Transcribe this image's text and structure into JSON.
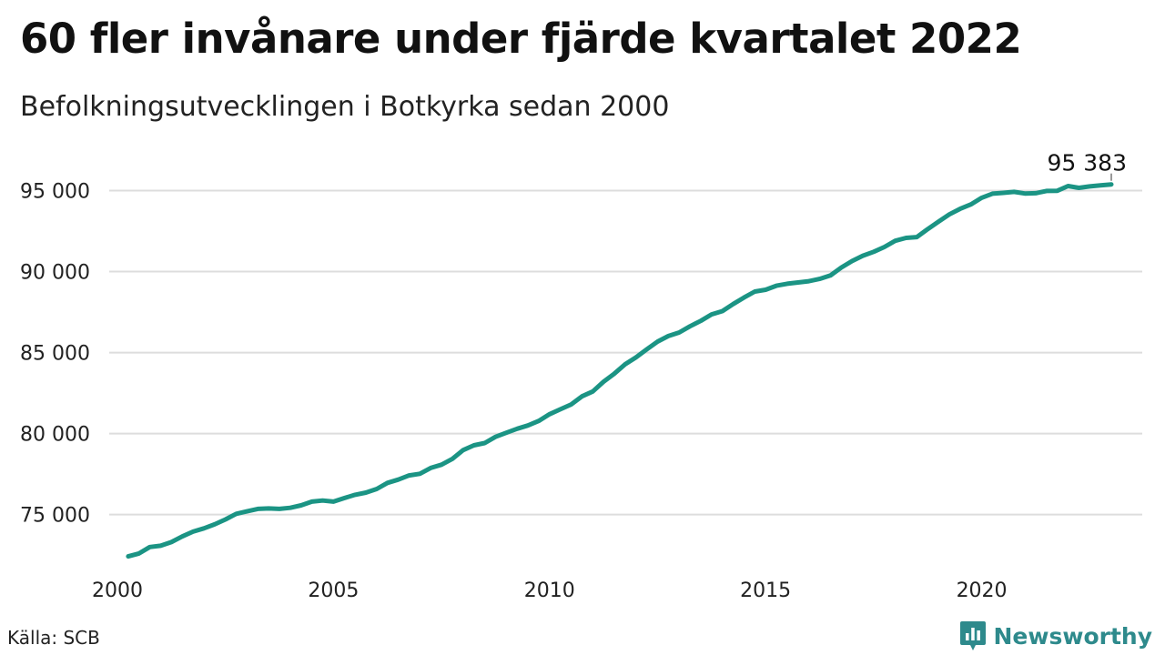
{
  "header": {
    "title": "60 fler invånare under fjärde kvartalet 2022",
    "subtitle": "Befolkningsutvecklingen i Botkyrka sedan 2000"
  },
  "footer": {
    "source": "Källa: SCB",
    "brand": "Newsworthy",
    "brand_icon": "newsworthy-logo-icon"
  },
  "colors": {
    "line": "#1b9484",
    "grid": "#dddddd",
    "brand": "#2e8a8c"
  },
  "chart_data": {
    "type": "line",
    "title": "60 fler invånare under fjärde kvartalet 2022",
    "subtitle": "Befolkningsutvecklingen i Botkyrka sedan 2000",
    "xlabel": "",
    "ylabel": "",
    "xlim": [
      2000,
      2023
    ],
    "ylim": [
      71500,
      97500
    ],
    "x_ticks": [
      {
        "value": 2000,
        "label": "2000"
      },
      {
        "value": 2005,
        "label": "2005"
      },
      {
        "value": 2010,
        "label": "2010"
      },
      {
        "value": 2015,
        "label": "2015"
      },
      {
        "value": 2020,
        "label": "2020"
      }
    ],
    "y_ticks": [
      {
        "value": 75000,
        "label": "75 000"
      },
      {
        "value": 80000,
        "label": "80 000"
      },
      {
        "value": 85000,
        "label": "85 000"
      },
      {
        "value": 90000,
        "label": "90 000"
      },
      {
        "value": 95000,
        "label": "95 000"
      }
    ],
    "grid": "horizontal",
    "legend": "none",
    "end_label": "95 383",
    "series": [
      {
        "x": [
          2000.25,
          2000.5,
          2000.75,
          2001.0,
          2001.25,
          2001.5,
          2001.75,
          2002.0,
          2002.25,
          2002.5,
          2002.75,
          2003.0,
          2003.25,
          2003.5,
          2003.75,
          2004.0,
          2004.25,
          2004.5,
          2004.75,
          2005.0,
          2005.25,
          2005.5,
          2005.75,
          2006.0,
          2006.25,
          2006.5,
          2006.75,
          2007.0,
          2007.25,
          2007.5,
          2007.75,
          2008.0,
          2008.25,
          2008.5,
          2008.75,
          2009.0,
          2009.25,
          2009.5,
          2009.75,
          2010.0,
          2010.25,
          2010.5,
          2010.75,
          2011.0,
          2011.25,
          2011.5,
          2011.75,
          2012.0,
          2012.25,
          2012.5,
          2012.75,
          2013.0,
          2013.25,
          2013.5,
          2013.75,
          2014.0,
          2014.25,
          2014.5,
          2014.75,
          2015.0,
          2015.25,
          2015.5,
          2015.75,
          2016.0,
          2016.25,
          2016.5,
          2016.75,
          2017.0,
          2017.25,
          2017.5,
          2017.75,
          2018.0,
          2018.25,
          2018.5,
          2018.75,
          2019.0,
          2019.25,
          2019.5,
          2019.75,
          2020.0,
          2020.25,
          2020.5,
          2020.75,
          2021.0,
          2021.25,
          2021.5,
          2021.75,
          2022.0,
          2022.25,
          2022.5,
          2022.75,
          2023.0
        ],
        "values": [
          72420,
          72600,
          73000,
          73080,
          73300,
          73650,
          73950,
          74150,
          74400,
          74700,
          75050,
          75200,
          75350,
          75380,
          75350,
          75420,
          75570,
          75800,
          75870,
          75800,
          76020,
          76220,
          76360,
          76580,
          76960,
          77160,
          77420,
          77520,
          77880,
          78080,
          78440,
          78980,
          79280,
          79420,
          79800,
          80050,
          80300,
          80500,
          80780,
          81200,
          81500,
          81800,
          82300,
          82600,
          83200,
          83700,
          84280,
          84700,
          85200,
          85680,
          86020,
          86240,
          86620,
          86960,
          87360,
          87560,
          88000,
          88400,
          88770,
          88880,
          89130,
          89250,
          89330,
          89410,
          89550,
          89760,
          90250,
          90650,
          90980,
          91220,
          91520,
          91900,
          92080,
          92130,
          92620,
          93080,
          93530,
          93870,
          94150,
          94560,
          94810,
          94860,
          94920,
          94820,
          94840,
          94980,
          94990,
          95280,
          95170,
          95260,
          95323,
          95383
        ]
      }
    ]
  }
}
